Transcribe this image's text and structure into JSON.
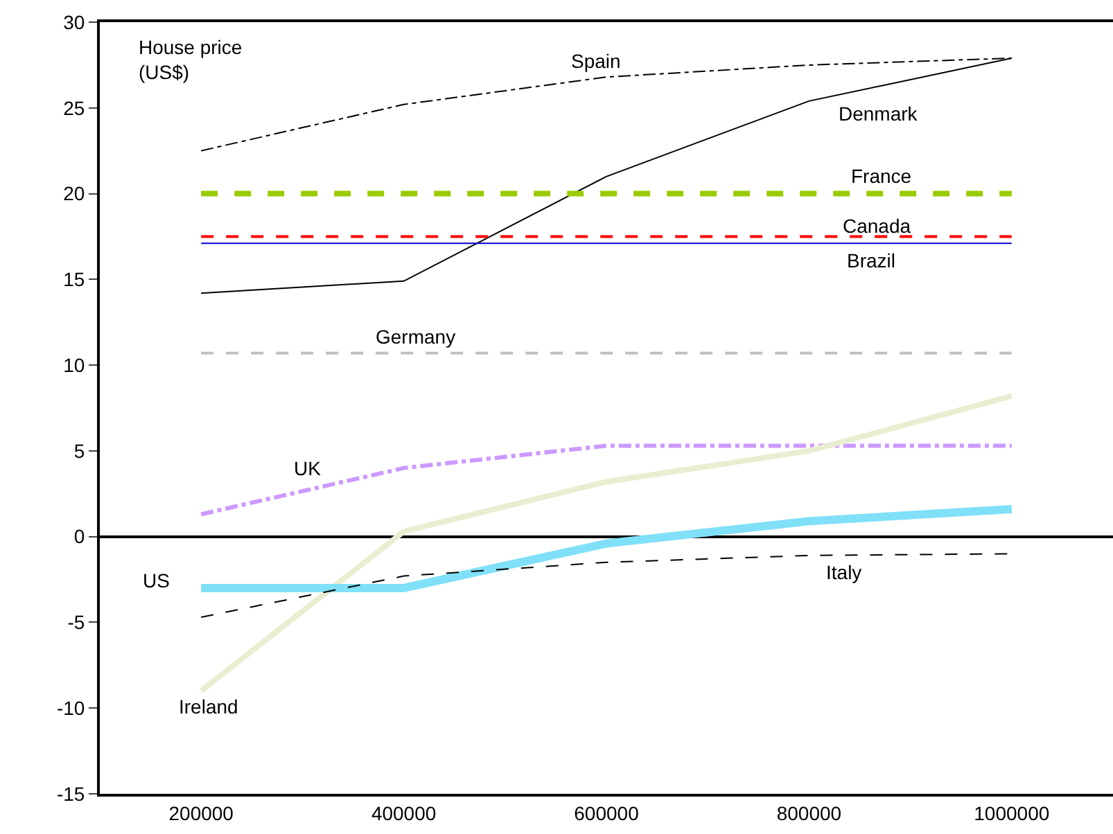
{
  "chart_data": {
    "type": "line",
    "ylabel": "House price\n(US$)",
    "categories": [
      "200000",
      "400000",
      "600000",
      "800000",
      "1000000"
    ],
    "ylim": [
      -15,
      30
    ],
    "yticks": [
      -15,
      -10,
      -5,
      0,
      5,
      10,
      15,
      20,
      25,
      30
    ],
    "grid": false,
    "legend": false,
    "marker": "none",
    "series": [
      {
        "name": "Spain",
        "color": "#000000",
        "line_style": "dashdot",
        "values": [
          22.5,
          25.2,
          26.8,
          27.5,
          27.9
        ]
      },
      {
        "name": "Denmark",
        "color": "#000000",
        "line_style": "solid",
        "values": [
          14.2,
          14.9,
          21.0,
          25.4,
          27.9
        ]
      },
      {
        "name": "France",
        "color": "#99cc00",
        "line_style": "dashed",
        "values": [
          20,
          20,
          20,
          20,
          20
        ]
      },
      {
        "name": "Canada",
        "color": "#ff0000",
        "line_style": "dashed",
        "values": [
          17.5,
          17.5,
          17.5,
          17.5,
          17.5
        ]
      },
      {
        "name": "Brazil",
        "color": "#0000cc",
        "line_style": "solid",
        "values": [
          17.1,
          17.1,
          17.1,
          17.1,
          17.1
        ]
      },
      {
        "name": "Germany",
        "color": "#c0c0c0",
        "line_style": "dashed",
        "values": [
          10.7,
          10.7,
          10.7,
          10.7,
          10.7
        ]
      },
      {
        "name": "UK",
        "color": "#cc99ff",
        "line_style": "dashdot",
        "values": [
          1.3,
          4.0,
          5.3,
          5.3,
          5.3
        ]
      },
      {
        "name": "Ireland",
        "color": "#e8eed0",
        "line_style": "solid",
        "values": [
          -9.0,
          0.3,
          3.2,
          5.0,
          8.2
        ]
      },
      {
        "name": "US",
        "color": "#80e0f8",
        "line_style": "solid",
        "values": [
          -3.0,
          -3.0,
          -0.4,
          0.9,
          1.6
        ]
      },
      {
        "name": "Italy",
        "color": "#000000",
        "line_style": "dashed",
        "values": [
          -4.7,
          -2.3,
          -1.5,
          -1.1,
          -1.0
        ]
      }
    ]
  }
}
